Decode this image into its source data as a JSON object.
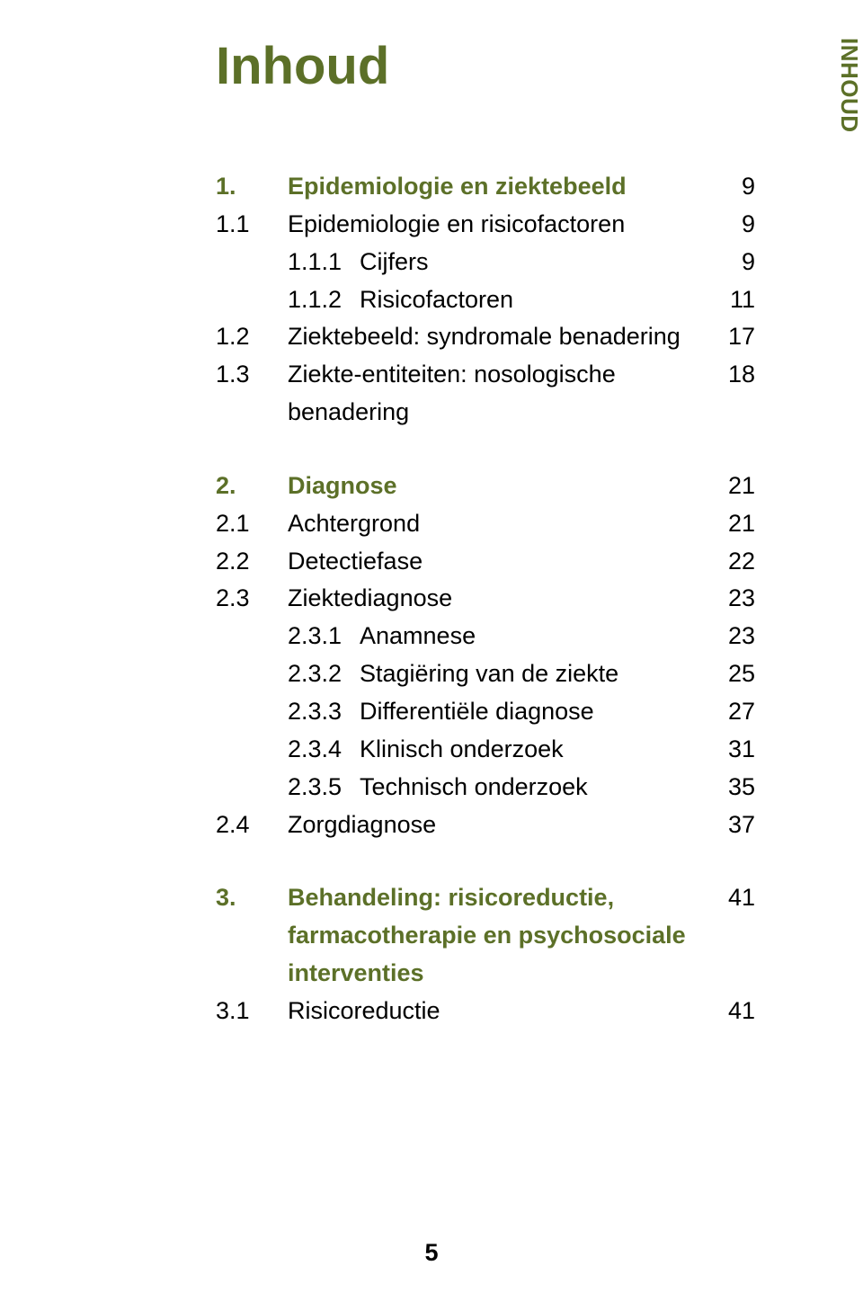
{
  "title": "Inhoud",
  "sidetab": "INHOUD",
  "page_number": "5",
  "colors": {
    "accent": "#5c7028",
    "text": "#000000",
    "background": "#ffffff"
  },
  "toc": [
    {
      "type": "chapter",
      "num": "1.",
      "label": "Epidemiologie en ziektebeeld",
      "page": "9"
    },
    {
      "type": "entry",
      "num": "1.1",
      "label": "Epidemiologie en risicofactoren",
      "page": "9"
    },
    {
      "type": "sub",
      "num": "1.1.1",
      "label": "Cijfers",
      "page": "9"
    },
    {
      "type": "sub",
      "num": "1.1.2",
      "label": "Risicofactoren",
      "page": "11"
    },
    {
      "type": "entry",
      "num": "1.2",
      "label": "Ziektebeeld: syndromale benadering",
      "page": "17"
    },
    {
      "type": "entry",
      "num": "1.3",
      "label": "Ziekte-entiteiten: nosologische benadering",
      "page": "18"
    },
    {
      "type": "gap"
    },
    {
      "type": "chapter",
      "num": "2.",
      "label": "Diagnose",
      "page": "21"
    },
    {
      "type": "entry",
      "num": "2.1",
      "label": "Achtergrond",
      "page": "21"
    },
    {
      "type": "entry",
      "num": "2.2",
      "label": "Detectiefase",
      "page": "22"
    },
    {
      "type": "entry",
      "num": "2.3",
      "label": "Ziektediagnose",
      "page": "23"
    },
    {
      "type": "sub",
      "num": "2.3.1",
      "label": "Anamnese",
      "page": "23"
    },
    {
      "type": "sub",
      "num": "2.3.2",
      "label": "Stagiëring van de ziekte",
      "page": "25"
    },
    {
      "type": "sub",
      "num": "2.3.3",
      "label": "Differentiële diagnose",
      "page": "27"
    },
    {
      "type": "sub",
      "num": "2.3.4",
      "label": "Klinisch onderzoek",
      "page": "31"
    },
    {
      "type": "sub",
      "num": "2.3.5",
      "label": "Technisch onderzoek",
      "page": "35"
    },
    {
      "type": "entry",
      "num": "2.4",
      "label": "Zorgdiagnose",
      "page": "37"
    },
    {
      "type": "gap"
    },
    {
      "type": "chapter",
      "num": "3.",
      "label": "Behandeling: risicoreductie, farmacotherapie en psychosociale interventies",
      "page": "41"
    },
    {
      "type": "entry",
      "num": "3.1",
      "label": "Risicoreductie",
      "page": "41"
    }
  ]
}
